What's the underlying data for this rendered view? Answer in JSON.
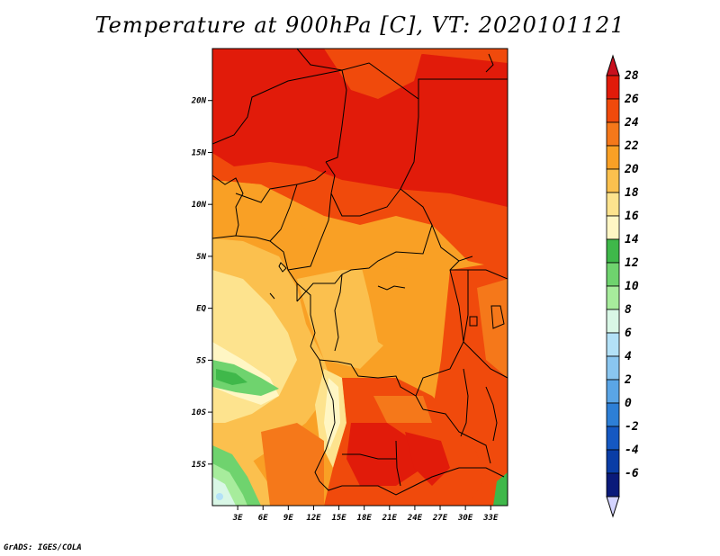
{
  "title": "Temperature at 900hPa [C], VT: 2020101121",
  "credit": "GrADS: IGES/COLA",
  "map": {
    "lat_range": [
      -19,
      25
    ],
    "lon_range": [
      0,
      35
    ],
    "lat_labels": [
      "20N",
      "15N",
      "10N",
      "5N",
      "EQ",
      "5S",
      "10S",
      "15S"
    ],
    "lon_labels": [
      "3E",
      "6E",
      "9E",
      "12E",
      "15E",
      "18E",
      "21E",
      "24E",
      "27E",
      "30E",
      "33E"
    ]
  },
  "colorbar": {
    "labels": [
      "28",
      "26",
      "24",
      "22",
      "20",
      "18",
      "16",
      "14",
      "12",
      "10",
      "8",
      "6",
      "4",
      "2",
      "0",
      "-2",
      "-4",
      "-6"
    ],
    "colors": [
      "#e11b0a",
      "#f04a0c",
      "#f5781a",
      "#f9a025",
      "#fbc04e",
      "#fde38e",
      "#fff6c4",
      "#3fb84a",
      "#6fd36e",
      "#a7ec9c",
      "#d9f7e6",
      "#b3e1f7",
      "#8ac6f0",
      "#5aa5e6",
      "#2d7fd6",
      "#1558c2",
      "#0a3da6",
      "#0a1a7a"
    ],
    "top_arrow_color": "#c8101e",
    "bottom_arrow_color": "#d4d4ff"
  }
}
